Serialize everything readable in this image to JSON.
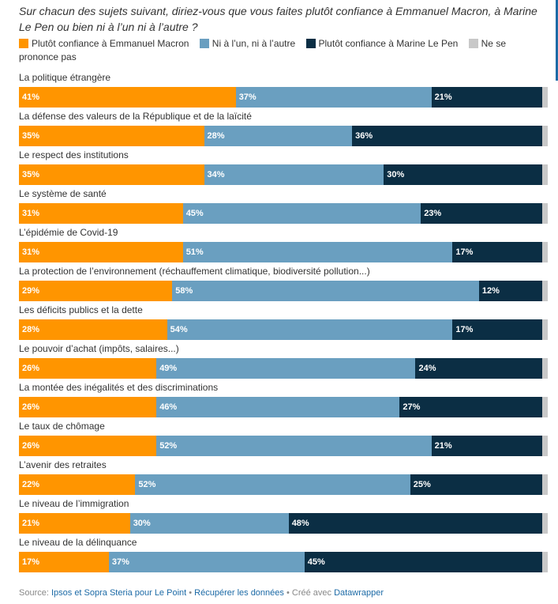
{
  "title": "Sur chacun des sujets suivant, diriez-vous que vous faites plutôt confiance à Emmanuel Macron, à Marine Le Pen ou bien ni à l’un ni à l’autre ?",
  "legend": [
    {
      "label": "Plutôt confiance à Emmanuel Macron",
      "color": "#ff9500"
    },
    {
      "label": "Ni à l’un, ni à l’autre",
      "color": "#6a9fc0"
    },
    {
      "label": "Plutôt confiance à Marine Le Pen",
      "color": "#0b2e44"
    },
    {
      "label": "Ne se prononce pas",
      "color": "#c8c8c8"
    }
  ],
  "chart_data": {
    "type": "bar",
    "orientation": "horizontal",
    "stacked": true,
    "categories": [
      "La politique étrangère",
      "La défense des valeurs de la République et de la laïcité",
      "Le respect des institutions",
      "Le système de santé",
      "L’épidémie de Covid-19",
      "La protection de l’environnement (réchauffement climatique, biodiversité pollution...)",
      "Les déficits publics et la dette",
      "Le pouvoir d’achat (impôts, salaires...)",
      "La montée des inégalités et des discriminations",
      "Le taux de chômage",
      "L’avenir des retraites",
      "Le niveau de l’immigration",
      "Le niveau de la délinquance"
    ],
    "series": [
      {
        "name": "Plutôt confiance à Emmanuel Macron",
        "color": "#ff9500",
        "values": [
          41,
          35,
          35,
          31,
          31,
          29,
          28,
          26,
          26,
          26,
          22,
          21,
          17
        ]
      },
      {
        "name": "Ni à l’un, ni à l’autre",
        "color": "#6a9fc0",
        "values": [
          37,
          28,
          34,
          45,
          51,
          58,
          54,
          49,
          46,
          52,
          52,
          30,
          37
        ]
      },
      {
        "name": "Plutôt confiance à Marine Le Pen",
        "color": "#0b2e44",
        "values": [
          21,
          36,
          30,
          23,
          17,
          12,
          17,
          24,
          27,
          21,
          25,
          48,
          45
        ]
      },
      {
        "name": "Ne se prononce pas",
        "color": "#c8c8c8",
        "values": [
          1,
          1,
          1,
          1,
          1,
          1,
          1,
          1,
          1,
          1,
          1,
          1,
          1
        ]
      }
    ],
    "value_suffix": "%",
    "xlim": [
      0,
      100
    ]
  },
  "footer": {
    "prefix": "Source: ",
    "source": "Ipsos et Sopra Steria pour Le Point",
    "separator1": " • ",
    "download": "Récupérer les données",
    "separator2": " • Créé avec ",
    "tool": "Datawrapper"
  }
}
